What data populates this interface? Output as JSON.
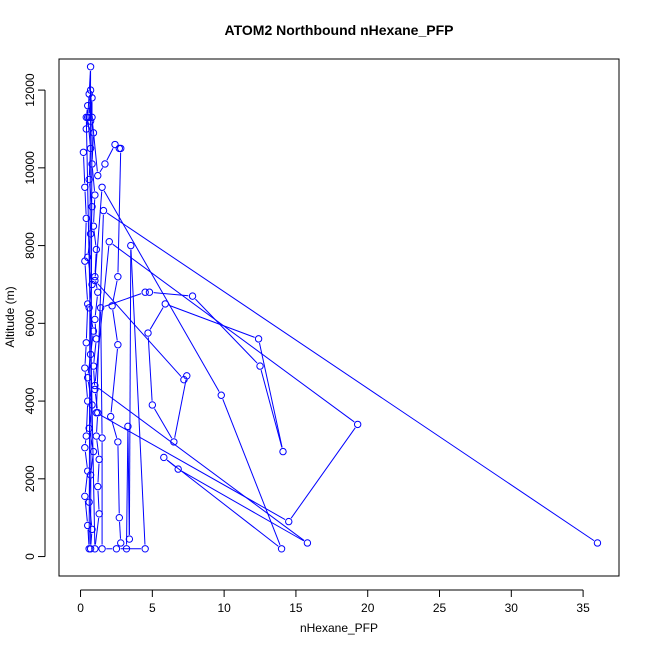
{
  "chart_data": {
    "type": "line",
    "title": "ATOM2 Northbound nHexane_PFP",
    "xlabel": "nHexane_PFP",
    "ylabel": "Altitude (m)",
    "xlim": [
      -1.5,
      37.5
    ],
    "ylim": [
      -500,
      12800
    ],
    "x_ticks": [
      0,
      5,
      10,
      15,
      20,
      25,
      30,
      35
    ],
    "y_ticks": [
      0,
      2000,
      4000,
      6000,
      8000,
      10000,
      12000
    ],
    "series_color": "#0000ff",
    "marker": "open-circle",
    "grid": false,
    "series": [
      {
        "points": [
          {
            "x": 0.2,
            "y": 10400
          },
          {
            "x": 0.3,
            "y": 9500
          },
          {
            "x": 0.4,
            "y": 8700
          },
          {
            "x": 0.3,
            "y": 7600
          },
          {
            "x": 0.5,
            "y": 6500
          },
          {
            "x": 0.4,
            "y": 5500
          },
          {
            "x": 0.3,
            "y": 4850
          },
          {
            "x": 0.5,
            "y": 4000
          },
          {
            "x": 0.4,
            "y": 3100
          },
          {
            "x": 0.3,
            "y": 2800
          },
          {
            "x": 0.5,
            "y": 2200
          },
          {
            "x": 0.3,
            "y": 1550
          },
          {
            "x": 0.5,
            "y": 800
          },
          {
            "x": 0.6,
            "y": 200
          },
          {
            "x": 0.7,
            "y": 12600
          },
          {
            "x": 0.6,
            "y": 11900
          },
          {
            "x": 0.5,
            "y": 11300
          },
          {
            "x": 0.7,
            "y": 10500
          },
          {
            "x": 0.6,
            "y": 9700
          },
          {
            "x": 0.8,
            "y": 9000
          },
          {
            "x": 0.7,
            "y": 8300
          },
          {
            "x": 0.5,
            "y": 7700
          },
          {
            "x": 0.8,
            "y": 7000
          },
          {
            "x": 0.6,
            "y": 6400
          },
          {
            "x": 0.9,
            "y": 5800
          },
          {
            "x": 0.7,
            "y": 5200
          },
          {
            "x": 0.5,
            "y": 4600
          },
          {
            "x": 0.8,
            "y": 3900
          },
          {
            "x": 0.6,
            "y": 3300
          },
          {
            "x": 0.9,
            "y": 2700
          },
          {
            "x": 0.7,
            "y": 2100
          },
          {
            "x": 0.6,
            "y": 1400
          },
          {
            "x": 0.8,
            "y": 700
          },
          {
            "x": 0.7,
            "y": 200
          },
          {
            "x": 0.8,
            "y": 11800
          },
          {
            "x": 0.7,
            "y": 11200
          },
          {
            "x": 0.9,
            "y": 10900
          },
          {
            "x": 0.8,
            "y": 10100
          },
          {
            "x": 1.0,
            "y": 9300
          },
          {
            "x": 0.9,
            "y": 8500
          },
          {
            "x": 1.1,
            "y": 7900
          },
          {
            "x": 1.0,
            "y": 7200
          },
          {
            "x": 1.2,
            "y": 6800
          },
          {
            "x": 1.0,
            "y": 6100
          },
          {
            "x": 1.1,
            "y": 5600
          },
          {
            "x": 0.9,
            "y": 4900
          },
          {
            "x": 1.0,
            "y": 4300
          },
          {
            "x": 1.2,
            "y": 3700
          },
          {
            "x": 1.1,
            "y": 3100
          },
          {
            "x": 1.3,
            "y": 2500
          },
          {
            "x": 1.2,
            "y": 1800
          },
          {
            "x": 1.3,
            "y": 1100
          },
          {
            "x": 1.0,
            "y": 200
          },
          {
            "x": 0.4,
            "y": 11300
          },
          {
            "x": 0.5,
            "y": 11600
          },
          {
            "x": 0.4,
            "y": 11000
          },
          {
            "x": 0.6,
            "y": 11300
          },
          {
            "x": 0.7,
            "y": 12000
          },
          {
            "x": 0.8,
            "y": 11300
          },
          {
            "x": 1.2,
            "y": 9800
          },
          {
            "x": 1.7,
            "y": 10100
          },
          {
            "x": 2.4,
            "y": 10600
          },
          {
            "x": 2.7,
            "y": 10500
          },
          {
            "x": 2.8,
            "y": 10500
          },
          {
            "x": 2.6,
            "y": 7200
          },
          {
            "x": 2.2,
            "y": 6450
          },
          {
            "x": 2.6,
            "y": 5450
          },
          {
            "x": 2.1,
            "y": 3600
          },
          {
            "x": 2.6,
            "y": 2950
          },
          {
            "x": 2.7,
            "y": 1000
          },
          {
            "x": 2.8,
            "y": 350
          },
          {
            "x": 3.2,
            "y": 200
          },
          {
            "x": 3.3,
            "y": 3350
          },
          {
            "x": 3.4,
            "y": 450
          },
          {
            "x": 3.5,
            "y": 8000
          },
          {
            "x": 4.5,
            "y": 200
          },
          {
            "x": 2.5,
            "y": 200
          },
          {
            "x": 1.5,
            "y": 200
          },
          {
            "x": 1.5,
            "y": 3050
          },
          {
            "x": 1.4,
            "y": 6400
          },
          {
            "x": 4.5,
            "y": 6800
          },
          {
            "x": 4.8,
            "y": 6800
          },
          {
            "x": 7.8,
            "y": 6700
          },
          {
            "x": 12.5,
            "y": 4900
          },
          {
            "x": 14.1,
            "y": 2700
          },
          {
            "x": 12.4,
            "y": 5600
          },
          {
            "x": 5.9,
            "y": 6500
          },
          {
            "x": 4.7,
            "y": 5750
          },
          {
            "x": 5.0,
            "y": 3900
          },
          {
            "x": 6.5,
            "y": 2950
          },
          {
            "x": 7.4,
            "y": 4650
          },
          {
            "x": 7.2,
            "y": 4550
          },
          {
            "x": 1.0,
            "y": 7100
          },
          {
            "x": 1.5,
            "y": 9500
          },
          {
            "x": 9.8,
            "y": 4150
          },
          {
            "x": 14.0,
            "y": 200
          },
          {
            "x": 5.8,
            "y": 2550
          },
          {
            "x": 6.8,
            "y": 2250
          },
          {
            "x": 15.8,
            "y": 350
          },
          {
            "x": 1.0,
            "y": 4400
          },
          {
            "x": 2.0,
            "y": 8100
          },
          {
            "x": 19.3,
            "y": 3400
          },
          {
            "x": 14.5,
            "y": 900
          },
          {
            "x": 1.1,
            "y": 3700
          },
          {
            "x": 1.6,
            "y": 8900
          },
          {
            "x": 36.0,
            "y": 350
          }
        ]
      }
    ]
  }
}
